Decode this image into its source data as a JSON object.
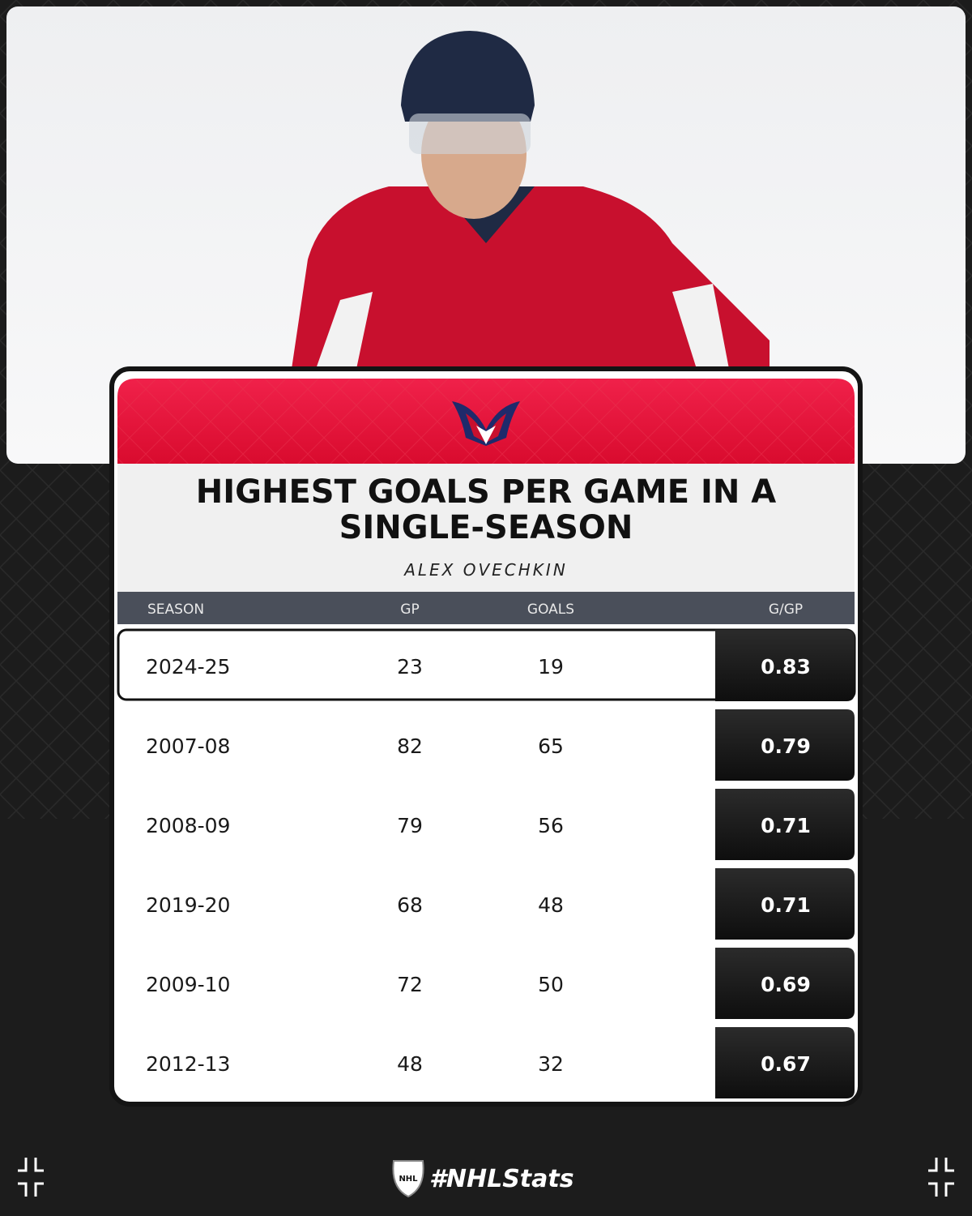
{
  "title": "HIGHEST GOALS PER GAME IN A SINGLE-SEASON",
  "subtitle": "ALEX OVECHKIN",
  "table": {
    "headers": [
      "SEASON",
      "GP",
      "GOALS",
      "G/GP"
    ],
    "rows": [
      [
        "2024-25",
        23,
        19,
        0.83
      ],
      [
        "2007-08",
        82,
        65,
        0.79
      ],
      [
        "2008-09",
        79,
        56,
        0.71
      ],
      [
        "2019-20",
        68,
        48,
        0.71
      ],
      [
        "2009-10",
        72,
        50,
        0.69
      ],
      [
        "2012-13",
        48,
        32,
        0.67
      ]
    ]
  },
  "footer": "#NHLStats"
}
